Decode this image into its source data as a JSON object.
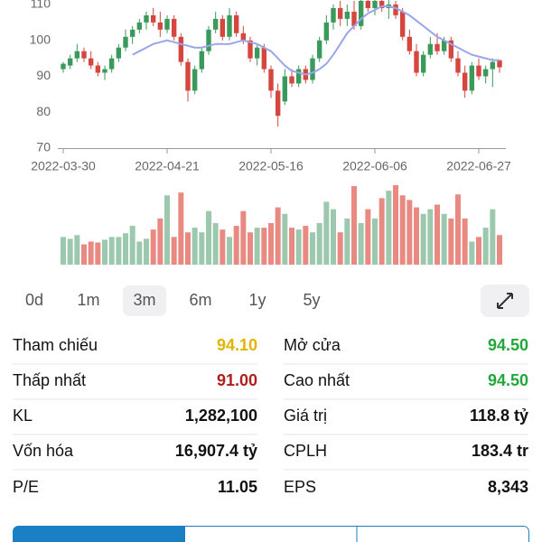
{
  "chart_data": {
    "type": "candlestick",
    "categories": [
      "2022-03-30",
      null,
      null,
      null,
      null,
      null,
      null,
      null,
      null,
      null,
      null,
      null,
      null,
      null,
      null,
      "2022-04-21",
      null,
      null,
      null,
      null,
      null,
      null,
      null,
      null,
      null,
      null,
      null,
      null,
      null,
      null,
      "2022-05-16",
      null,
      null,
      null,
      null,
      null,
      null,
      null,
      null,
      null,
      null,
      null,
      null,
      null,
      null,
      "2022-06-06",
      null,
      null,
      null,
      null,
      null,
      null,
      null,
      null,
      null,
      null,
      null,
      null,
      null,
      null,
      "2022-06-27",
      null,
      null,
      null
    ],
    "open": [
      92,
      93,
      95,
      97,
      95,
      93,
      91,
      92,
      95,
      98,
      101,
      103,
      105,
      107,
      105,
      103,
      106,
      101,
      94,
      86,
      92,
      97,
      103,
      106,
      101,
      107,
      102,
      100,
      95,
      98,
      92,
      86,
      83,
      90,
      88,
      92,
      89,
      95,
      100,
      105,
      109,
      106,
      108,
      104,
      111,
      109,
      111,
      109,
      110,
      108,
      101,
      97,
      91,
      96,
      99,
      97,
      100,
      95,
      91,
      86,
      93,
      90,
      92,
      94.5
    ],
    "high": [
      94,
      96,
      99,
      98,
      97,
      94,
      93,
      96,
      99,
      103,
      104,
      106,
      108,
      109,
      108,
      107,
      107,
      102,
      95,
      93,
      98,
      104,
      108,
      107,
      109,
      108,
      104,
      101,
      99,
      99,
      93,
      88,
      92,
      92,
      93,
      93,
      96,
      101,
      107,
      110,
      111,
      110,
      111,
      112,
      113,
      112,
      113,
      112,
      111,
      109,
      103,
      99,
      97,
      101,
      102,
      101,
      101,
      97,
      93,
      94,
      95,
      93,
      95,
      94.5
    ],
    "low": [
      91,
      92,
      94,
      94,
      92,
      90,
      89,
      91,
      94,
      97,
      99,
      102,
      103,
      104,
      101,
      102,
      100,
      93,
      83,
      85,
      91,
      96,
      102,
      100,
      100,
      101,
      99,
      94,
      93,
      91,
      84,
      76,
      82,
      87,
      87,
      88,
      88,
      94,
      99,
      103,
      104,
      104,
      103,
      103,
      108,
      107,
      108,
      106,
      106,
      100,
      96,
      90,
      90,
      95,
      96,
      96,
      94,
      90,
      84,
      85,
      89,
      88,
      87,
      91
    ],
    "close": [
      93.5,
      95,
      97,
      95,
      93,
      91,
      92,
      95,
      98,
      101,
      103,
      105,
      107,
      105,
      103,
      106,
      101,
      94,
      86,
      92,
      97,
      103,
      106,
      101,
      107,
      102,
      100,
      95,
      98,
      92,
      86,
      79,
      90,
      88,
      92,
      89,
      95,
      100,
      105,
      109,
      106,
      108,
      104,
      111,
      109,
      111,
      109,
      110,
      107,
      101,
      97,
      91,
      96,
      99,
      97,
      100,
      95,
      91,
      86,
      93,
      90,
      92,
      94,
      92.5
    ],
    "ma": [
      null,
      null,
      null,
      null,
      null,
      null,
      null,
      null,
      null,
      null,
      96,
      97,
      98,
      99,
      99.5,
      100,
      99.5,
      99,
      98.5,
      98,
      98,
      98.5,
      99,
      99,
      99,
      99.5,
      100,
      99.5,
      99,
      98,
      97,
      95,
      93,
      91.5,
      91,
      90.5,
      91,
      92,
      93.5,
      96,
      99,
      102,
      104,
      106,
      107.5,
      108.5,
      109.5,
      109.5,
      109,
      108,
      107,
      105.5,
      104,
      102.5,
      101,
      100,
      99,
      98,
      97,
      96,
      95.5,
      95,
      94.5,
      94.5
    ],
    "volume": [
      30,
      28,
      32,
      22,
      25,
      24,
      27,
      30,
      30,
      34,
      42,
      25,
      28,
      38,
      50,
      75,
      30,
      78,
      35,
      40,
      35,
      58,
      45,
      38,
      30,
      42,
      58,
      35,
      40,
      40,
      45,
      62,
      55,
      40,
      38,
      42,
      35,
      45,
      68,
      60,
      35,
      50,
      85,
      45,
      60,
      50,
      72,
      80,
      86,
      75,
      70,
      62,
      55,
      60,
      65,
      55,
      50,
      76,
      50,
      25,
      30,
      40,
      60,
      32
    ],
    "ylim": [
      70,
      111
    ],
    "yticks": [
      70,
      80,
      90,
      100,
      110
    ],
    "up_color": "#3a9a5c",
    "down_color": "#d5463f",
    "ma_color": "#9aa6e8",
    "volume_up_color": "#9cc9ad",
    "volume_down_color": "#e88a82"
  },
  "periods": [
    "0d",
    "1m",
    "3m",
    "6m",
    "1y",
    "5y"
  ],
  "selected_period_index": 2,
  "stats": [
    [
      {
        "label": "Tham chiếu",
        "value": "94.10",
        "color": "#e0b400"
      },
      {
        "label": "Mở cửa",
        "value": "94.50",
        "color": "#22a83a"
      }
    ],
    [
      {
        "label": "Thấp nhất",
        "value": "91.00",
        "color": "#b01e1e"
      },
      {
        "label": "Cao nhất",
        "value": "94.50",
        "color": "#22a83a"
      }
    ],
    [
      {
        "label": "KL",
        "value": "1,282,100"
      },
      {
        "label": "Giá trị",
        "value": "118.8 tỷ"
      }
    ],
    [
      {
        "label": "Vốn hóa",
        "value": "16,907.4 tỷ"
      },
      {
        "label": "CPLH",
        "value": "183.4 tr"
      }
    ],
    [
      {
        "label": "P/E",
        "value": "11.05"
      },
      {
        "label": "EPS",
        "value": "8,343"
      }
    ]
  ]
}
